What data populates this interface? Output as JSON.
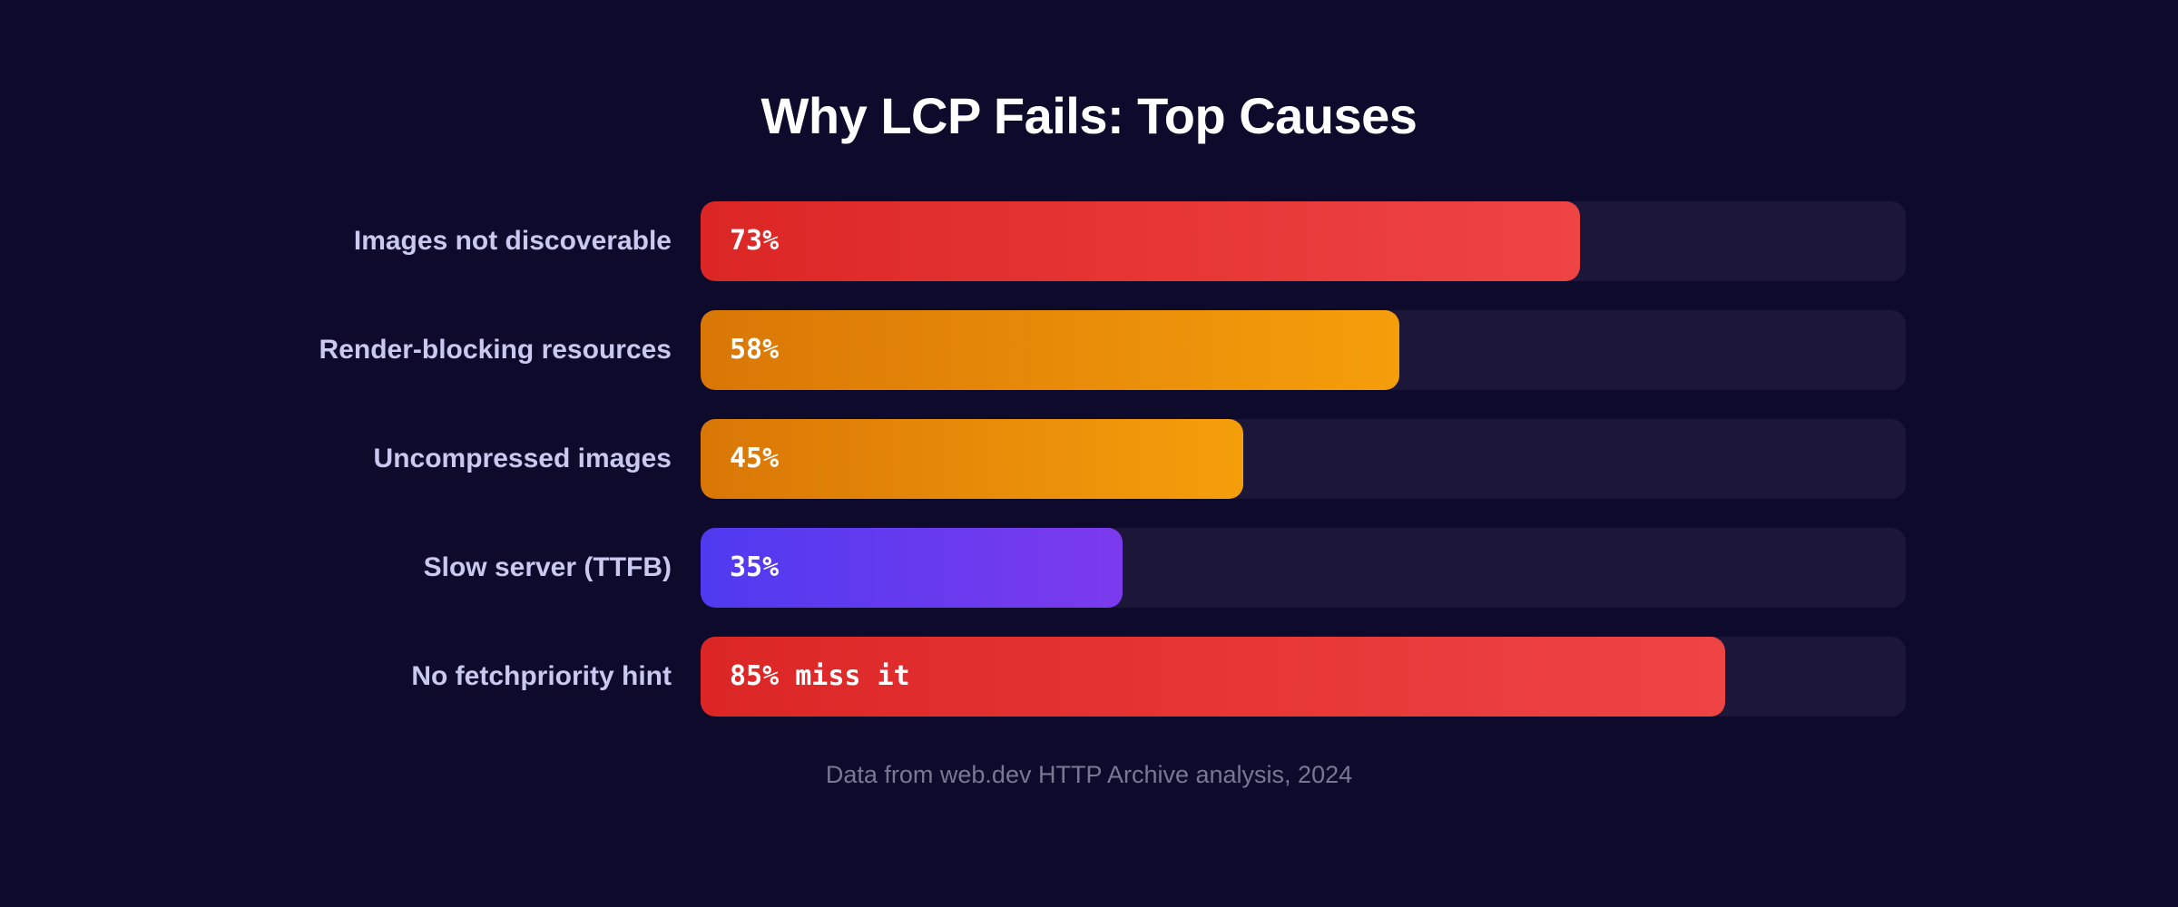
{
  "chart_data": {
    "type": "bar",
    "orientation": "horizontal",
    "title": "Why LCP Fails: Top Causes",
    "categories": [
      "Images not discoverable",
      "Render-blocking resources",
      "Uncompressed images",
      "Slow server (TTFB)",
      "No fetchpriority hint"
    ],
    "values": [
      73,
      58,
      45,
      35,
      85
    ],
    "value_labels": [
      "73%",
      "58%",
      "45%",
      "35%",
      "85% miss it"
    ],
    "colors": [
      {
        "from": "#dc2626",
        "to": "#ef4444"
      },
      {
        "from": "#d97706",
        "to": "#f59e0b"
      },
      {
        "from": "#d97706",
        "to": "#f59e0b"
      },
      {
        "from": "#4f3af0",
        "to": "#7c3aed"
      },
      {
        "from": "#dc2626",
        "to": "#ef4444"
      }
    ],
    "xlim": [
      0,
      100
    ],
    "grid": false,
    "legend": "none",
    "source": "Data from web.dev HTTP Archive analysis, 2024"
  }
}
